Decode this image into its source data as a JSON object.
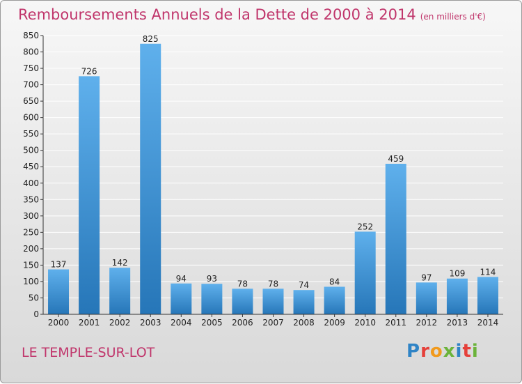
{
  "header": {
    "title": "Remboursements Annuels de la Dette de 2000 à 2014",
    "unit": "(en milliers d'€)"
  },
  "footer": {
    "town": "LE TEMPLE-SUR-LOT",
    "brand": "Proxiti"
  },
  "colors": {
    "accent": "#c0356b",
    "bar_top": "#5fb0ec",
    "bar_bottom": "#2676b8"
  },
  "chart_data": {
    "type": "bar",
    "title": "Remboursements Annuels de la Dette de 2000 à 2014",
    "categories": [
      "2000",
      "2001",
      "2002",
      "2003",
      "2004",
      "2005",
      "2006",
      "2007",
      "2008",
      "2009",
      "2010",
      "2011",
      "2012",
      "2013",
      "2014"
    ],
    "values": [
      137,
      726,
      142,
      825,
      94,
      93,
      78,
      78,
      74,
      84,
      252,
      459,
      97,
      109,
      114
    ],
    "ylim": [
      0,
      850
    ],
    "yticks": [
      0,
      50,
      100,
      150,
      200,
      250,
      300,
      350,
      400,
      450,
      500,
      550,
      600,
      650,
      700,
      750,
      800,
      850
    ],
    "grid": true,
    "xlabel": "",
    "ylabel": ""
  }
}
